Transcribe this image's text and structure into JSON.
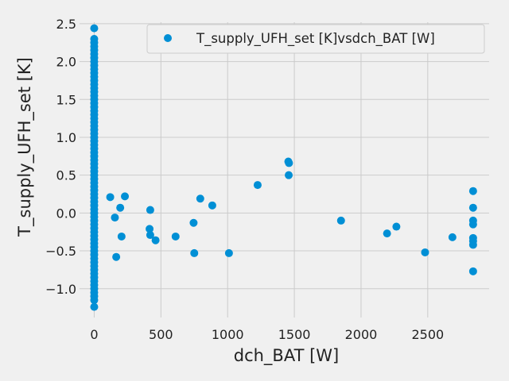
{
  "chart_data": {
    "type": "scatter",
    "title": "",
    "xlabel": "dch_BAT [W]",
    "ylabel": "T_supply_UFH_set [K]",
    "xlim": [
      -110,
      2960
    ],
    "ylim": [
      -1.38,
      2.52
    ],
    "x_ticks": [
      0,
      500,
      1000,
      1500,
      2000,
      2500
    ],
    "x_tick_labels": [
      "0",
      "500",
      "1000",
      "1500",
      "2000",
      "2500"
    ],
    "y_ticks": [
      -1.0,
      -0.5,
      0.0,
      0.5,
      1.0,
      1.5,
      2.0,
      2.5
    ],
    "y_tick_labels": [
      "−1.0",
      "−0.5",
      "0.0",
      "0.5",
      "1.0",
      "1.5",
      "2.0",
      "2.5"
    ],
    "grid": true,
    "legend_position": "top-right",
    "marker_color": "#008fd5",
    "series": [
      {
        "name": "T_supply_UFH_set [K]vsdch_BAT [W]",
        "points": [
          [
            0,
            2.44
          ],
          [
            0,
            2.3
          ],
          [
            0,
            2.25
          ],
          [
            0,
            2.2
          ],
          [
            0,
            2.15
          ],
          [
            0,
            2.1
          ],
          [
            0,
            2.05
          ],
          [
            0,
            2.0
          ],
          [
            0,
            1.95
          ],
          [
            0,
            1.9
          ],
          [
            0,
            1.85
          ],
          [
            0,
            1.8
          ],
          [
            0,
            1.75
          ],
          [
            0,
            1.7
          ],
          [
            0,
            1.65
          ],
          [
            0,
            1.6
          ],
          [
            0,
            1.55
          ],
          [
            0,
            1.5
          ],
          [
            0,
            1.45
          ],
          [
            0,
            1.4
          ],
          [
            0,
            1.35
          ],
          [
            0,
            1.3
          ],
          [
            0,
            1.25
          ],
          [
            0,
            1.2
          ],
          [
            0,
            1.15
          ],
          [
            0,
            1.1
          ],
          [
            0,
            1.05
          ],
          [
            0,
            1.0
          ],
          [
            0,
            0.95
          ],
          [
            0,
            0.9
          ],
          [
            0,
            0.85
          ],
          [
            0,
            0.8
          ],
          [
            0,
            0.75
          ],
          [
            0,
            0.7
          ],
          [
            0,
            0.65
          ],
          [
            0,
            0.6
          ],
          [
            0,
            0.55
          ],
          [
            0,
            0.5
          ],
          [
            0,
            0.45
          ],
          [
            0,
            0.4
          ],
          [
            0,
            0.35
          ],
          [
            0,
            0.3
          ],
          [
            0,
            0.25
          ],
          [
            0,
            0.2
          ],
          [
            0,
            0.15
          ],
          [
            0,
            0.1
          ],
          [
            0,
            0.05
          ],
          [
            0,
            0.0
          ],
          [
            0,
            -0.05
          ],
          [
            0,
            -0.1
          ],
          [
            0,
            -0.15
          ],
          [
            0,
            -0.2
          ],
          [
            0,
            -0.25
          ],
          [
            0,
            -0.3
          ],
          [
            0,
            -0.35
          ],
          [
            0,
            -0.4
          ],
          [
            0,
            -0.45
          ],
          [
            0,
            -0.5
          ],
          [
            0,
            -0.55
          ],
          [
            0,
            -0.6
          ],
          [
            0,
            -0.65
          ],
          [
            0,
            -0.7
          ],
          [
            0,
            -0.75
          ],
          [
            0,
            -0.8
          ],
          [
            0,
            -0.85
          ],
          [
            0,
            -0.9
          ],
          [
            0,
            -0.95
          ],
          [
            0,
            -1.0
          ],
          [
            0,
            -1.05
          ],
          [
            0,
            -1.1
          ],
          [
            0,
            -1.15
          ],
          [
            0,
            -1.24
          ],
          [
            120,
            0.21
          ],
          [
            155,
            -0.06
          ],
          [
            165,
            -0.58
          ],
          [
            195,
            0.07
          ],
          [
            205,
            -0.31
          ],
          [
            230,
            0.22
          ],
          [
            420,
            0.04
          ],
          [
            415,
            -0.21
          ],
          [
            420,
            -0.29
          ],
          [
            460,
            -0.36
          ],
          [
            610,
            -0.31
          ],
          [
            745,
            -0.13
          ],
          [
            750,
            -0.53
          ],
          [
            795,
            0.19
          ],
          [
            885,
            0.1
          ],
          [
            1010,
            -0.53
          ],
          [
            1225,
            0.37
          ],
          [
            1455,
            0.68
          ],
          [
            1460,
            0.66
          ],
          [
            1458,
            0.5
          ],
          [
            1850,
            -0.1
          ],
          [
            2195,
            -0.27
          ],
          [
            2265,
            -0.18
          ],
          [
            2480,
            -0.52
          ],
          [
            2685,
            -0.32
          ],
          [
            2840,
            0.29
          ],
          [
            2840,
            0.07
          ],
          [
            2840,
            -0.1
          ],
          [
            2840,
            -0.15
          ],
          [
            2840,
            -0.33
          ],
          [
            2840,
            -0.37
          ],
          [
            2840,
            -0.42
          ],
          [
            2840,
            -0.77
          ]
        ]
      }
    ]
  }
}
